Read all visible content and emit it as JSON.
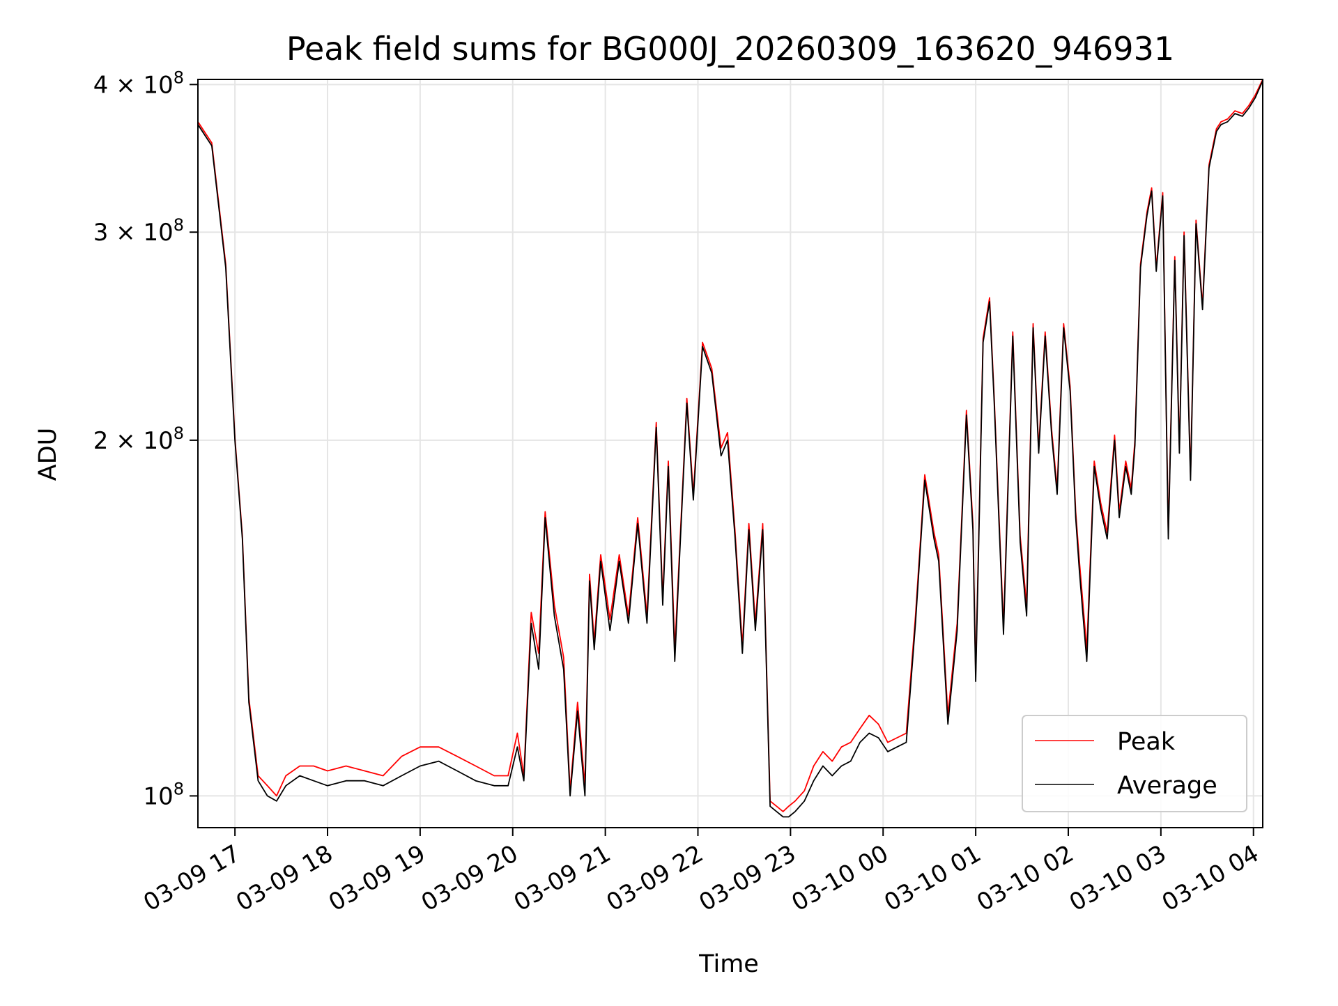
{
  "chart_data": {
    "type": "line",
    "title": "Peak field sums for BG000J_20260309_163620_946931",
    "xlabel": "Time",
    "ylabel": "ADU",
    "yscale": "log",
    "ylim": [
      94000000,
      404000000
    ],
    "xlim_hours": [
      16.6,
      28.1
    ],
    "grid": true,
    "legend": {
      "position": "lower right",
      "entries": [
        "Peak",
        "Average"
      ]
    },
    "colors": {
      "Peak": "#ff0000",
      "Average": "#000000",
      "grid": "#e5e5e5"
    },
    "x_ticks": [
      {
        "h": 17,
        "label": "03-09 17"
      },
      {
        "h": 18,
        "label": "03-09 18"
      },
      {
        "h": 19,
        "label": "03-09 19"
      },
      {
        "h": 20,
        "label": "03-09 20"
      },
      {
        "h": 21,
        "label": "03-09 21"
      },
      {
        "h": 22,
        "label": "03-09 22"
      },
      {
        "h": 23,
        "label": "03-09 23"
      },
      {
        "h": 24,
        "label": "03-10 00"
      },
      {
        "h": 25,
        "label": "03-10 01"
      },
      {
        "h": 26,
        "label": "03-10 02"
      },
      {
        "h": 27,
        "label": "03-10 03"
      },
      {
        "h": 28,
        "label": "03-10 04"
      }
    ],
    "y_ticks": [
      {
        "value": 100000000,
        "base": "10",
        "exp": "8"
      },
      {
        "value": 200000000,
        "base": "2 × 10",
        "exp": "8"
      },
      {
        "value": 300000000,
        "base": "3 × 10",
        "exp": "8"
      },
      {
        "value": 400000000,
        "base": "4 × 10",
        "exp": "8"
      }
    ],
    "series": [
      {
        "name": "Average",
        "x_hours": [
          16.6,
          16.75,
          16.9,
          17.0,
          17.08,
          17.15,
          17.25,
          17.35,
          17.45,
          17.55,
          17.7,
          17.85,
          18.0,
          18.2,
          18.4,
          18.6,
          18.8,
          19.0,
          19.2,
          19.4,
          19.6,
          19.8,
          19.95,
          20.05,
          20.12,
          20.2,
          20.28,
          20.35,
          20.45,
          20.55,
          20.62,
          20.7,
          20.78,
          20.83,
          20.88,
          20.95,
          21.05,
          21.15,
          21.25,
          21.35,
          21.45,
          21.55,
          21.62,
          21.68,
          21.75,
          21.8,
          21.88,
          21.95,
          22.05,
          22.15,
          22.25,
          22.32,
          22.4,
          22.48,
          22.55,
          22.62,
          22.7,
          22.78,
          22.85,
          22.92,
          22.98,
          23.05,
          23.15,
          23.25,
          23.35,
          23.45,
          23.55,
          23.65,
          23.75,
          23.85,
          23.95,
          24.05,
          24.15,
          24.25,
          24.35,
          24.45,
          24.55,
          24.6,
          24.7,
          24.8,
          24.9,
          24.97,
          25.0,
          25.08,
          25.15,
          25.2,
          25.3,
          25.4,
          25.48,
          25.55,
          25.62,
          25.68,
          25.75,
          25.82,
          25.88,
          25.95,
          26.02,
          26.08,
          26.12,
          26.2,
          26.28,
          26.35,
          26.42,
          26.5,
          26.55,
          26.62,
          26.68,
          26.72,
          26.78,
          26.85,
          26.9,
          26.95,
          27.02,
          27.08,
          27.15,
          27.2,
          27.25,
          27.32,
          27.38,
          27.45,
          27.52,
          27.6,
          27.65,
          27.72,
          27.8,
          27.88,
          27.95,
          28.02,
          28.1
        ],
        "values": [
          370000000,
          355000000,
          280000000,
          200000000,
          165000000,
          120000000,
          103000000,
          100000000,
          99000000,
          102000000,
          104000000,
          103000000,
          102000000,
          103000000,
          103000000,
          102000000,
          104000000,
          106000000,
          107000000,
          105000000,
          103000000,
          102000000,
          102000000,
          110000000,
          103000000,
          140000000,
          128000000,
          172000000,
          142000000,
          128000000,
          100000000,
          118000000,
          100000000,
          152000000,
          133000000,
          158000000,
          138000000,
          158000000,
          140000000,
          170000000,
          140000000,
          205000000,
          145000000,
          190000000,
          130000000,
          158000000,
          215000000,
          178000000,
          240000000,
          228000000,
          194000000,
          200000000,
          166000000,
          132000000,
          168000000,
          138000000,
          168000000,
          98000000,
          97000000,
          96000000,
          96000000,
          97000000,
          99000000,
          103000000,
          106000000,
          104000000,
          106000000,
          107000000,
          111000000,
          113000000,
          112000000,
          109000000,
          110000000,
          111000000,
          140000000,
          185000000,
          165000000,
          158000000,
          115000000,
          138000000,
          210000000,
          168000000,
          125000000,
          242000000,
          262000000,
          215000000,
          137000000,
          245000000,
          164000000,
          142000000,
          249000000,
          195000000,
          245000000,
          202000000,
          180000000,
          249000000,
          220000000,
          172000000,
          155000000,
          130000000,
          190000000,
          175000000,
          165000000,
          200000000,
          172000000,
          190000000,
          180000000,
          198000000,
          280000000,
          310000000,
          325000000,
          278000000,
          322000000,
          165000000,
          284000000,
          195000000,
          298000000,
          185000000,
          305000000,
          258000000,
          340000000,
          365000000,
          370000000,
          372000000,
          378000000,
          376000000,
          382000000,
          390000000,
          403000000
        ]
      },
      {
        "name": "Peak",
        "x_hours": [
          16.6,
          16.75,
          16.9,
          17.0,
          17.08,
          17.15,
          17.25,
          17.35,
          17.45,
          17.55,
          17.7,
          17.85,
          18.0,
          18.2,
          18.4,
          18.6,
          18.8,
          19.0,
          19.2,
          19.4,
          19.6,
          19.8,
          19.95,
          20.05,
          20.12,
          20.2,
          20.28,
          20.35,
          20.45,
          20.55,
          20.62,
          20.7,
          20.78,
          20.83,
          20.88,
          20.95,
          21.05,
          21.15,
          21.25,
          21.35,
          21.45,
          21.55,
          21.62,
          21.68,
          21.75,
          21.8,
          21.88,
          21.95,
          22.05,
          22.15,
          22.25,
          22.32,
          22.4,
          22.48,
          22.55,
          22.62,
          22.7,
          22.78,
          22.85,
          22.92,
          22.98,
          23.05,
          23.15,
          23.25,
          23.35,
          23.45,
          23.55,
          23.65,
          23.75,
          23.85,
          23.95,
          24.05,
          24.15,
          24.25,
          24.35,
          24.45,
          24.55,
          24.6,
          24.7,
          24.8,
          24.9,
          24.97,
          25.0,
          25.08,
          25.15,
          25.2,
          25.3,
          25.4,
          25.48,
          25.55,
          25.62,
          25.68,
          25.75,
          25.82,
          25.88,
          25.95,
          26.02,
          26.08,
          26.12,
          26.2,
          26.28,
          26.35,
          26.42,
          26.5,
          26.55,
          26.62,
          26.68,
          26.72,
          26.78,
          26.85,
          26.9,
          26.95,
          27.02,
          27.08,
          27.15,
          27.2,
          27.25,
          27.32,
          27.38,
          27.45,
          27.52,
          27.6,
          27.65,
          27.72,
          27.8,
          27.88,
          27.95,
          28.02,
          28.1
        ],
        "values": [
          372000000,
          357000000,
          282000000,
          201000000,
          166000000,
          121000000,
          104000000,
          102000000,
          100000000,
          104000000,
          106000000,
          106000000,
          105000000,
          106000000,
          105000000,
          104000000,
          108000000,
          110000000,
          110000000,
          108000000,
          106000000,
          104000000,
          104000000,
          113000000,
          104000000,
          143000000,
          132000000,
          174000000,
          145000000,
          131000000,
          101000000,
          120000000,
          102000000,
          154000000,
          135000000,
          160000000,
          141000000,
          160000000,
          142000000,
          172000000,
          142000000,
          207000000,
          147000000,
          192000000,
          133000000,
          160000000,
          217000000,
          180000000,
          242000000,
          230000000,
          197000000,
          203000000,
          168000000,
          134000000,
          170000000,
          140000000,
          170000000,
          99000000,
          98000000,
          97000000,
          98000000,
          99000000,
          101000000,
          106000000,
          109000000,
          107000000,
          110000000,
          111000000,
          114000000,
          117000000,
          115000000,
          111000000,
          112000000,
          113000000,
          142000000,
          187000000,
          167000000,
          160000000,
          117000000,
          140000000,
          212000000,
          170000000,
          127000000,
          244000000,
          264000000,
          217000000,
          139000000,
          247000000,
          166000000,
          145000000,
          251000000,
          197000000,
          247000000,
          204000000,
          182000000,
          251000000,
          222000000,
          174000000,
          158000000,
          133000000,
          192000000,
          177000000,
          167000000,
          202000000,
          174000000,
          192000000,
          182000000,
          200000000,
          282000000,
          312000000,
          327000000,
          280000000,
          324000000,
          167000000,
          286000000,
          197000000,
          300000000,
          187000000,
          307000000,
          260000000,
          342000000,
          367000000,
          372000000,
          374000000,
          380000000,
          378000000,
          384000000,
          392000000,
          404000000
        ]
      }
    ]
  }
}
